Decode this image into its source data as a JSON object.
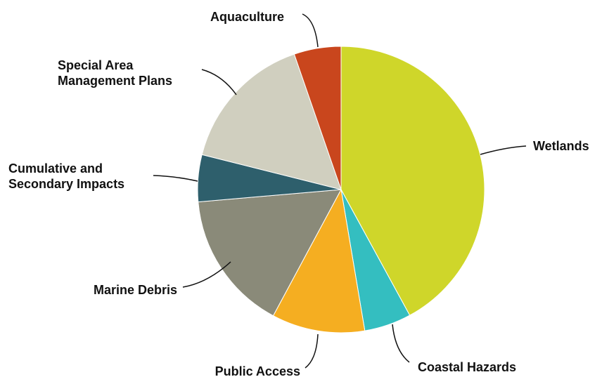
{
  "chart_data": {
    "type": "pie",
    "title": "",
    "start_angle_deg": 0,
    "direction": "clockwise",
    "slices": [
      {
        "label_lines": [
          "Wetlands"
        ],
        "value": 42.1,
        "color": "#CFD62A"
      },
      {
        "label_lines": [
          "Coastal Hazards"
        ],
        "value": 5.3,
        "color": "#34BEC0"
      },
      {
        "label_lines": [
          "Public Access"
        ],
        "value": 10.5,
        "color": "#F5AE21"
      },
      {
        "label_lines": [
          "Marine Debris"
        ],
        "value": 15.8,
        "color": "#8A8A79"
      },
      {
        "label_lines": [
          "Cumulative and",
          "Secondary Impacts"
        ],
        "value": 5.3,
        "color": "#2E5F6C"
      },
      {
        "label_lines": [
          "Special Area",
          "Management Plans"
        ],
        "value": 15.8,
        "color": "#D0CFBF"
      },
      {
        "label_lines": [
          "Aquaculture"
        ],
        "value": 5.3,
        "color": "#C9461D"
      }
    ]
  }
}
